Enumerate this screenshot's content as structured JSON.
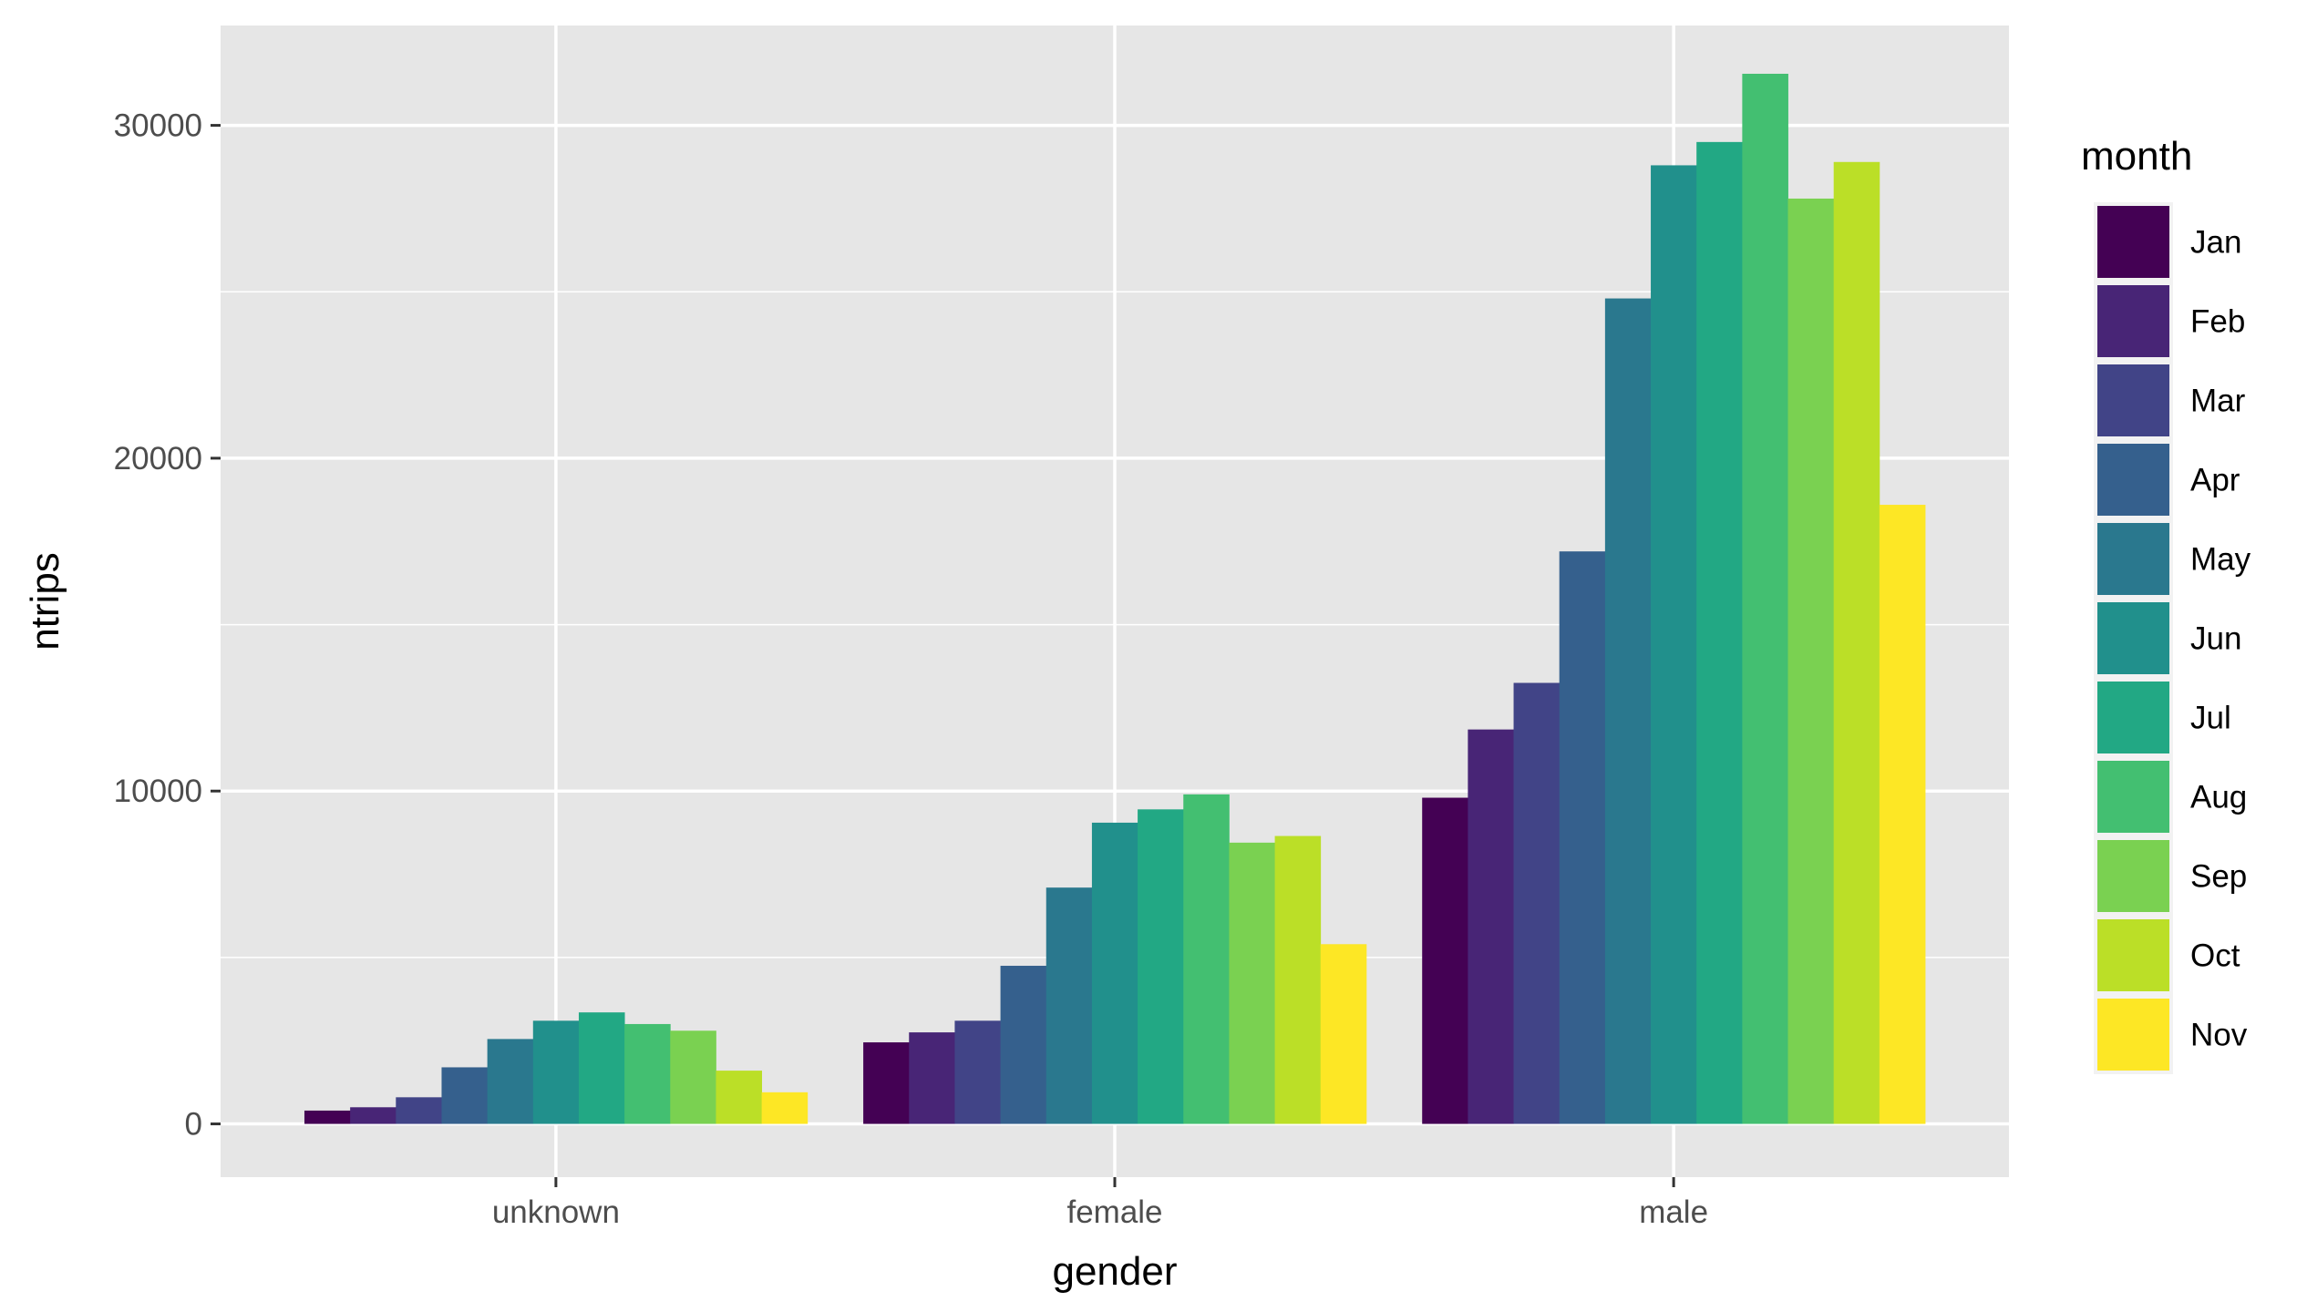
{
  "chart_data": {
    "type": "bar",
    "title": "",
    "xlabel": "gender",
    "ylabel": "ntrips",
    "categories": [
      "unknown",
      "female",
      "male"
    ],
    "ylim": [
      -1600,
      33000
    ],
    "yticks": [
      0,
      10000,
      20000,
      30000
    ],
    "grid": true,
    "legend": {
      "title": "month",
      "position": "right"
    },
    "series": [
      {
        "name": "Jan",
        "color": "#440154",
        "values": [
          400,
          2450,
          9800
        ]
      },
      {
        "name": "Feb",
        "color": "#482576",
        "values": [
          500,
          2750,
          11850
        ]
      },
      {
        "name": "Mar",
        "color": "#414487",
        "values": [
          800,
          3100,
          13250
        ]
      },
      {
        "name": "Apr",
        "color": "#35608D",
        "values": [
          1700,
          4750,
          17200
        ]
      },
      {
        "name": "May",
        "color": "#2A788E",
        "values": [
          2550,
          7100,
          24800
        ]
      },
      {
        "name": "Jun",
        "color": "#21908C",
        "values": [
          3100,
          9050,
          28800
        ]
      },
      {
        "name": "Jul",
        "color": "#22A884",
        "values": [
          3350,
          9450,
          29500
        ]
      },
      {
        "name": "Aug",
        "color": "#43BF71",
        "values": [
          3000,
          9900,
          31550
        ]
      },
      {
        "name": "Sep",
        "color": "#7AD151",
        "values": [
          2800,
          8450,
          27800
        ]
      },
      {
        "name": "Oct",
        "color": "#BBDF27",
        "values": [
          1600,
          8650,
          28900
        ]
      },
      {
        "name": "Nov",
        "color": "#FDE725",
        "values": [
          950,
          5400,
          18600
        ]
      }
    ]
  }
}
